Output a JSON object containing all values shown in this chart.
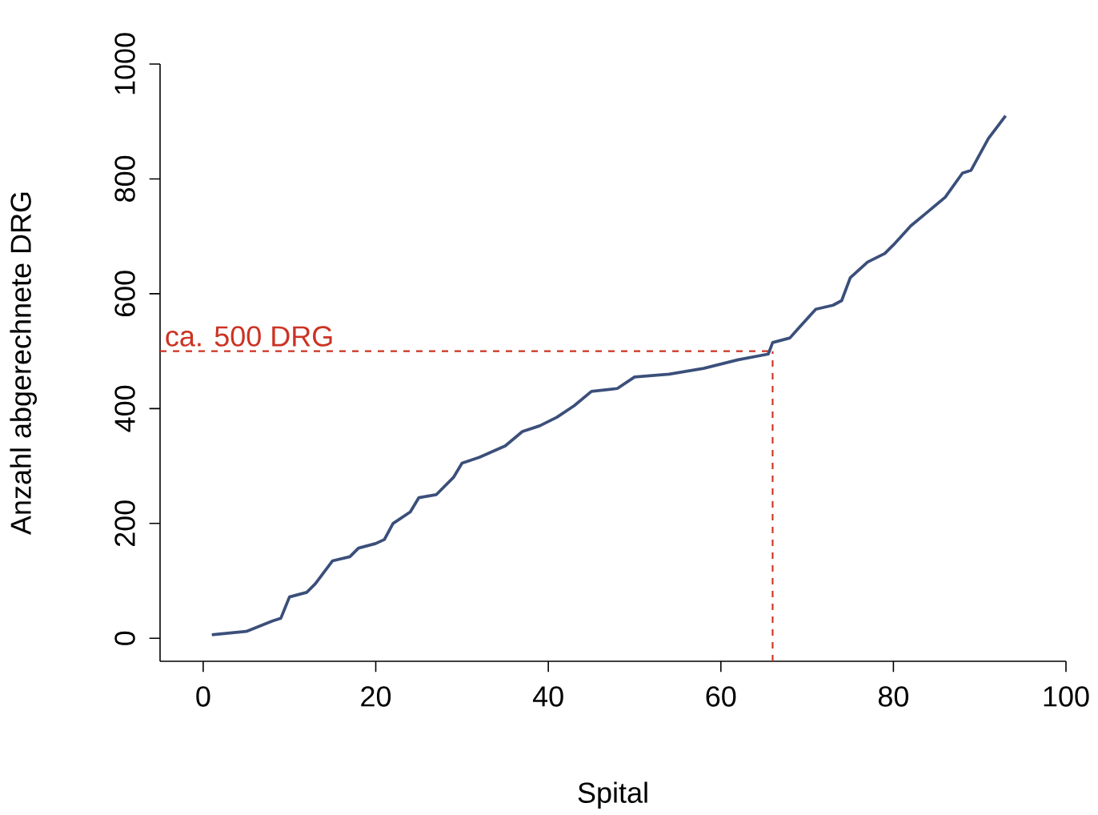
{
  "chart_data": {
    "type": "line",
    "xlabel": "Spital",
    "ylabel": "Anzahl abgerechnete DRG",
    "xlim": [
      -5,
      100
    ],
    "ylim": [
      -40,
      1000
    ],
    "xticks": [
      0,
      20,
      40,
      60,
      80,
      100
    ],
    "yticks": [
      0,
      200,
      400,
      600,
      800,
      1000
    ],
    "grid": false,
    "marker": "none",
    "line_style": "solid",
    "series": [
      {
        "color": "#3b4f7a",
        "x": [
          1,
          5,
          8,
          9,
          10,
          12,
          13,
          15,
          17,
          18,
          20,
          21,
          22,
          24,
          25,
          27,
          29,
          30,
          32,
          35,
          37,
          39,
          41,
          43,
          45,
          48,
          50,
          54,
          58,
          62,
          65.5,
          66,
          68,
          69,
          71,
          73,
          74,
          75,
          77,
          79,
          80,
          82,
          84,
          86,
          88,
          89,
          91,
          93
        ],
        "values": [
          6,
          12,
          30,
          35,
          72,
          80,
          95,
          135,
          142,
          157,
          165,
          172,
          200,
          220,
          245,
          250,
          280,
          305,
          315,
          335,
          360,
          370,
          385,
          405,
          430,
          435,
          455,
          460,
          470,
          485,
          495,
          515,
          523,
          540,
          573,
          580,
          588,
          628,
          655,
          670,
          685,
          718,
          743,
          768,
          810,
          815,
          870,
          910
        ]
      }
    ],
    "ref_lines": [
      {
        "axis": "y",
        "value": 500,
        "label": "ca. 500 DRG",
        "color": "#cc3322",
        "line_style": "dashed"
      },
      {
        "axis": "x",
        "value": 66,
        "color": "#cc3322",
        "line_style": "dashed"
      }
    ]
  }
}
